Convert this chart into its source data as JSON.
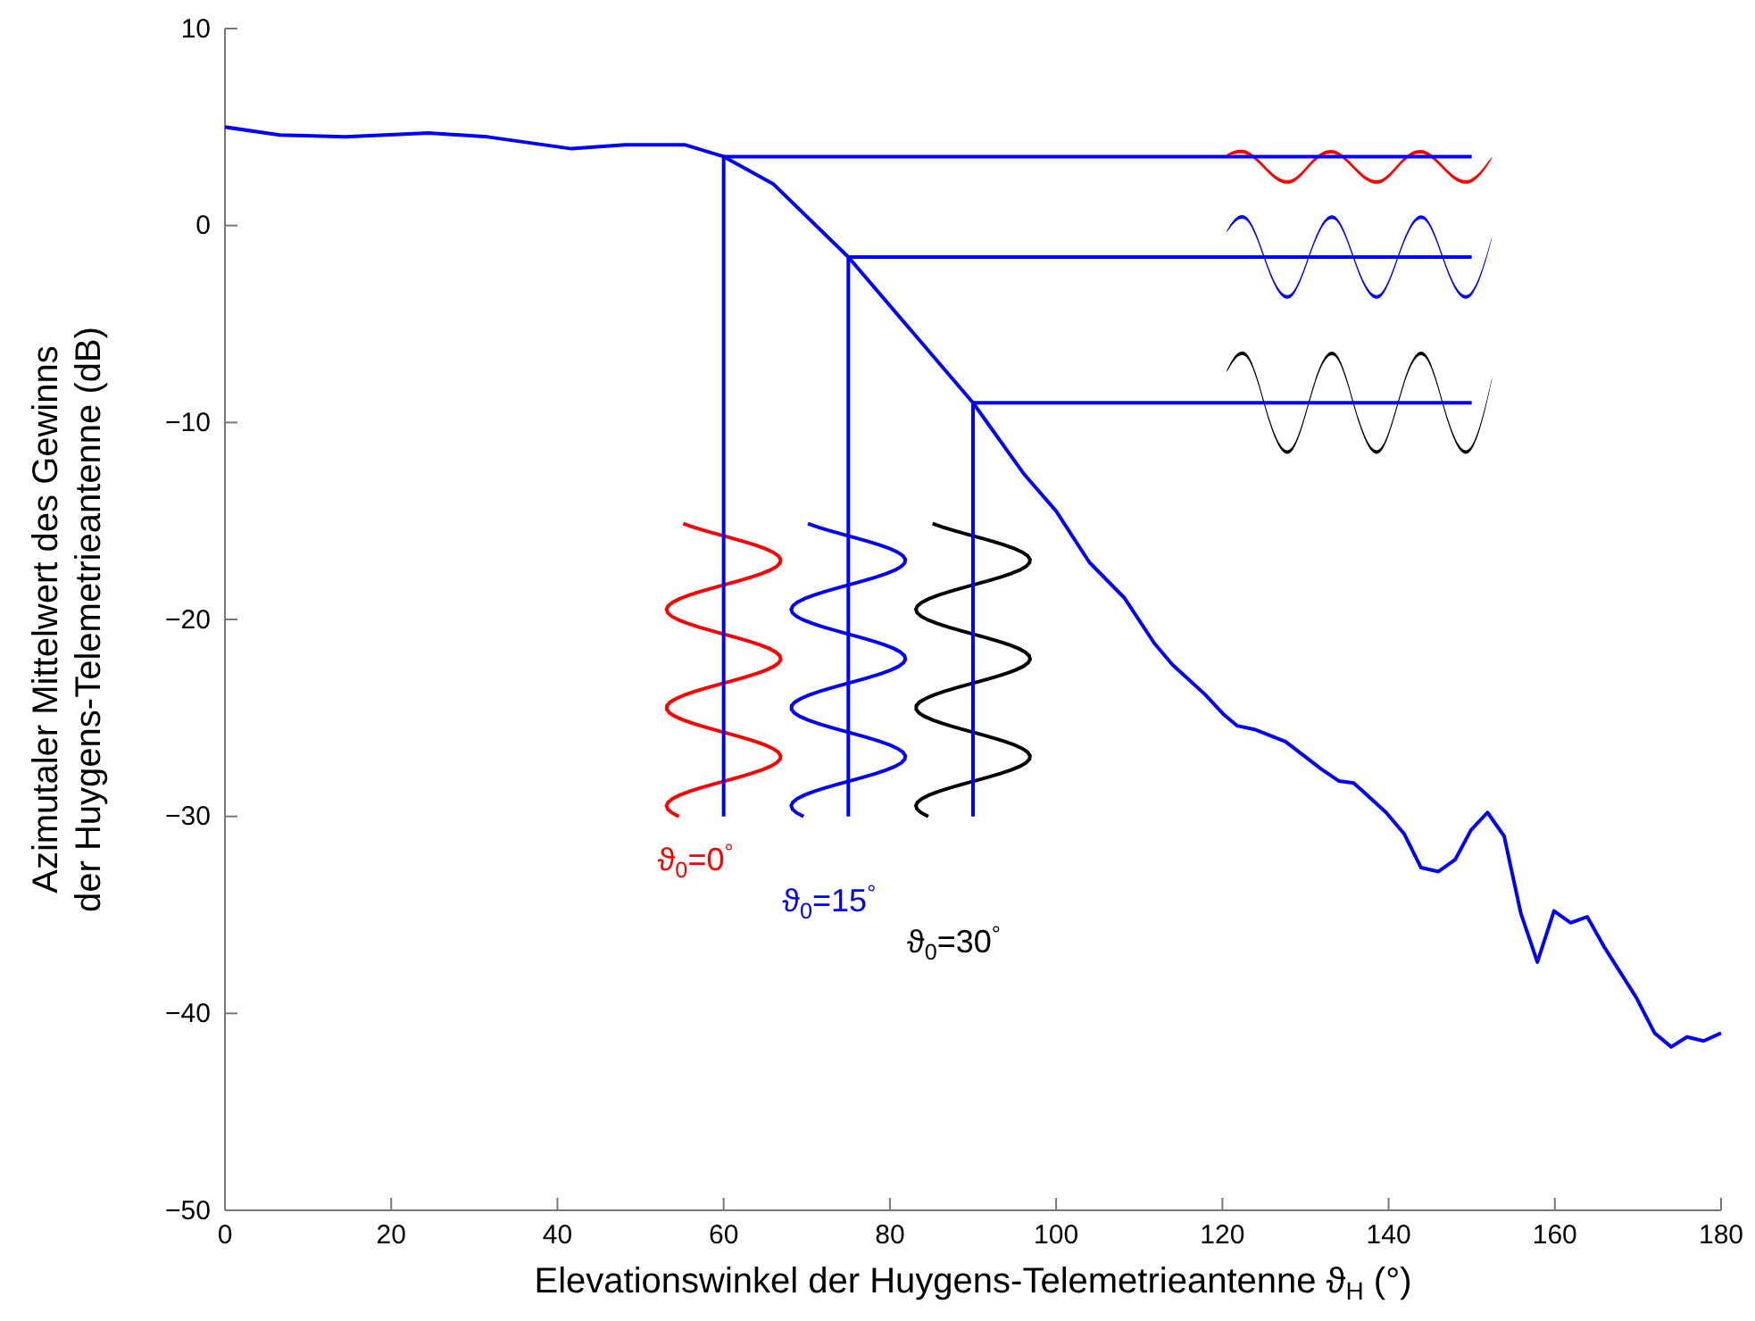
{
  "chart_data": {
    "type": "line",
    "xlabel": "Elevationswinkel der Huygens-Telemetrieantenne ϑ$_{H}$ (°)",
    "ylabel": "Azimutaler Mittelwert des Gewinns\nder Huygens-Telemetrieantenne (dB)",
    "xlim": [
      0,
      180
    ],
    "xticks": [
      0,
      20,
      40,
      60,
      80,
      100,
      120,
      140,
      160,
      180
    ],
    "ylim": [
      -50,
      10
    ],
    "yticks": [
      -50,
      -40,
      -30,
      -20,
      -10,
      0,
      10
    ],
    "grid": false,
    "line_style": "solid",
    "marker": "none",
    "series": [
      {
        "color": "#0000ff",
        "x": [
          0,
          6.6,
          14.5,
          24.5,
          31.6,
          41.7,
          48.1,
          55.3,
          60,
          66,
          75,
          90,
          96.1,
          100,
          104,
          108.2,
          111.8,
          114,
          117.9,
          120.1,
          121.8,
          124,
          127.6,
          131.9,
          134,
          135.8,
          139.7,
          141.9,
          143.9,
          146,
          148,
          149.9,
          151.9,
          153.9,
          155.9,
          157.9,
          159.9,
          161.9,
          163.9,
          165.9,
          169.8,
          172,
          174,
          175.9,
          177.9,
          180
        ],
        "values": [
          5.0,
          4.6,
          4.5,
          4.7,
          4.5,
          3.9,
          4.1,
          4.1,
          3.5,
          2.1,
          -1.6,
          -9.0,
          -12.6,
          -14.5,
          -17.1,
          -18.9,
          -21.2,
          -22.3,
          -23.8,
          -24.8,
          -25.4,
          -25.6,
          -26.2,
          -27.6,
          -28.2,
          -28.3,
          -29.8,
          -30.9,
          -32.6,
          -32.8,
          -32.2,
          -30.7,
          -29.8,
          -31.0,
          -34.9,
          -37.4,
          -34.8,
          -35.4,
          -35.1,
          -36.6,
          -39.2,
          -41.0,
          -41.7,
          -41.2,
          -41.4,
          -41.0
        ]
      },
      {
        "color": "#0000ff",
        "x": [
          60,
          60,
          150
        ],
        "values": [
          -30,
          3.5,
          3.5
        ]
      },
      {
        "color": "#0000ff",
        "x": [
          75,
          75,
          150
        ],
        "values": [
          -30,
          -1.6,
          -1.6
        ]
      },
      {
        "color": "#0000ff",
        "x": [
          90,
          90,
          150
        ],
        "values": [
          -30,
          -9.0,
          -9.0
        ]
      }
    ],
    "annotations": [
      "ϑ$_{0}$=0$^{°}$",
      "ϑ$_{0}$=15$^{°}$",
      "ϑ$_{0}$=30$^{°}$"
    ]
  }
}
